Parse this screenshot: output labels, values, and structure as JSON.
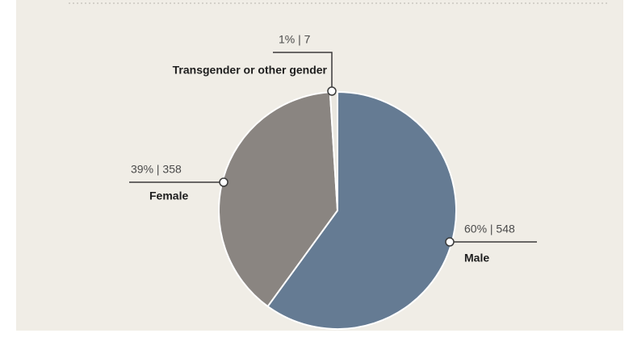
{
  "chart_data": {
    "type": "pie",
    "categories": [
      "Male",
      "Female",
      "Transgender or other gender"
    ],
    "values": [
      60,
      39,
      1
    ],
    "value_labels": [
      "60% | 548",
      "39% | 358",
      "1% | 7"
    ],
    "colors": [
      "#657b93",
      "#8a8581",
      "#e9e6df"
    ]
  }
}
